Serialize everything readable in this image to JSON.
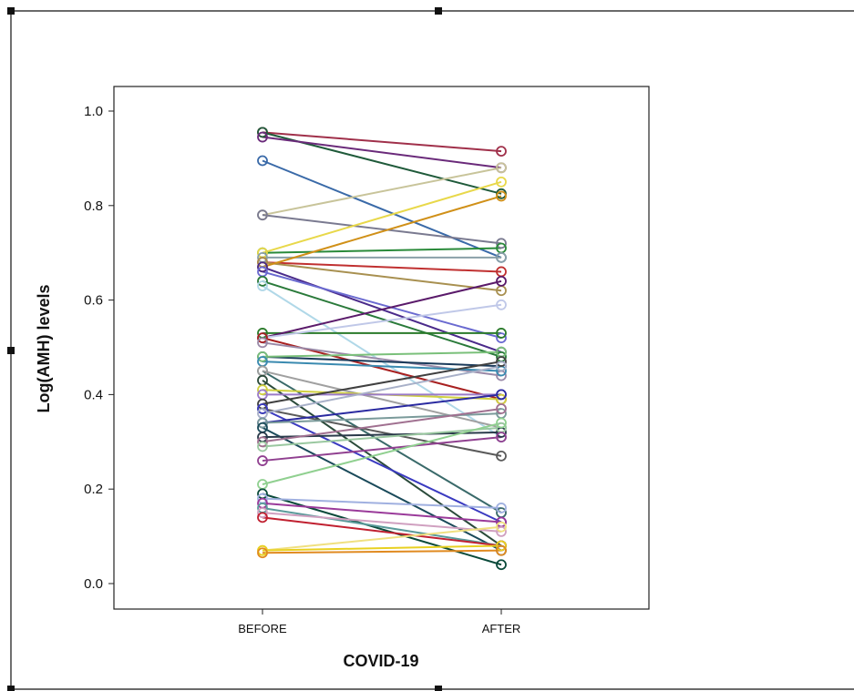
{
  "chart_data": {
    "type": "line",
    "xlabel": "COVID-19",
    "ylabel": "Log(AMH) levels",
    "categories": [
      "BEFORE",
      "AFTER"
    ],
    "ylim": [
      -0.05,
      1.05
    ],
    "yticks": [
      {
        "value": 0.0,
        "label": "0.0"
      },
      {
        "value": 0.2,
        "label": "0.2"
      },
      {
        "value": 0.4,
        "label": "0.4"
      },
      {
        "value": 0.6,
        "label": "0.6"
      },
      {
        "value": 0.8,
        "label": "0.8"
      },
      {
        "value": 1.0,
        "label": "1.0"
      }
    ],
    "grid": false,
    "legend": "none",
    "series": [
      {
        "values": [
          0.955,
          0.915
        ],
        "color": "#a0304a"
      },
      {
        "values": [
          0.955,
          0.825
        ],
        "color": "#1f5a3a"
      },
      {
        "values": [
          0.945,
          0.88
        ],
        "color": "#6a2a7a"
      },
      {
        "values": [
          0.895,
          0.69
        ],
        "color": "#3a6aa8"
      },
      {
        "values": [
          0.78,
          0.88
        ],
        "color": "#c8c49a"
      },
      {
        "values": [
          0.78,
          0.72
        ],
        "color": "#7a7a90"
      },
      {
        "values": [
          0.7,
          0.71
        ],
        "color": "#2a8a3a"
      },
      {
        "values": [
          0.7,
          0.85
        ],
        "color": "#e8d84a"
      },
      {
        "values": [
          0.69,
          0.69
        ],
        "color": "#8aa0a8"
      },
      {
        "values": [
          0.68,
          0.66
        ],
        "color": "#c03030"
      },
      {
        "values": [
          0.68,
          0.62
        ],
        "color": "#a89050"
      },
      {
        "values": [
          0.67,
          0.82
        ],
        "color": "#d09018"
      },
      {
        "values": [
          0.67,
          0.49
        ],
        "color": "#4a2a8a"
      },
      {
        "values": [
          0.66,
          0.52
        ],
        "color": "#6a6ad0"
      },
      {
        "values": [
          0.64,
          0.48
        ],
        "color": "#2a7a3a"
      },
      {
        "values": [
          0.63,
          0.31
        ],
        "color": "#b0d8e8"
      },
      {
        "values": [
          0.53,
          0.53
        ],
        "color": "#2a7a2a"
      },
      {
        "values": [
          0.52,
          0.64
        ],
        "color": "#5a1a6a"
      },
      {
        "values": [
          0.52,
          0.59
        ],
        "color": "#c0c8e8"
      },
      {
        "values": [
          0.52,
          0.39
        ],
        "color": "#a82020"
      },
      {
        "values": [
          0.51,
          0.44
        ],
        "color": "#9a8aa8"
      },
      {
        "values": [
          0.48,
          0.46
        ],
        "color": "#1a3a5a"
      },
      {
        "values": [
          0.48,
          0.49
        ],
        "color": "#7ac07a"
      },
      {
        "values": [
          0.47,
          0.45
        ],
        "color": "#3a8ab0"
      },
      {
        "values": [
          0.45,
          0.15
        ],
        "color": "#3a6a6a"
      },
      {
        "values": [
          0.45,
          0.33
        ],
        "color": "#a0a0a0"
      },
      {
        "values": [
          0.43,
          0.08
        ],
        "color": "#2a4a3a"
      },
      {
        "values": [
          0.41,
          0.39
        ],
        "color": "#d0d040"
      },
      {
        "values": [
          0.4,
          0.4
        ],
        "color": "#9a7ac8"
      },
      {
        "values": [
          0.38,
          0.47
        ],
        "color": "#404040"
      },
      {
        "values": [
          0.37,
          0.27
        ],
        "color": "#5a5a5a"
      },
      {
        "values": [
          0.37,
          0.13
        ],
        "color": "#3a3ac0"
      },
      {
        "values": [
          0.36,
          0.46
        ],
        "color": "#a8b0c8"
      },
      {
        "values": [
          0.34,
          0.4
        ],
        "color": "#2a2aa0"
      },
      {
        "values": [
          0.34,
          0.36
        ],
        "color": "#7a9a9a"
      },
      {
        "values": [
          0.33,
          0.07
        ],
        "color": "#1a4a5a"
      },
      {
        "values": [
          0.31,
          0.32
        ],
        "color": "#2a3a4a"
      },
      {
        "values": [
          0.3,
          0.37
        ],
        "color": "#a07090"
      },
      {
        "values": [
          0.29,
          0.33
        ],
        "color": "#9ac8a0"
      },
      {
        "values": [
          0.26,
          0.31
        ],
        "color": "#904090"
      },
      {
        "values": [
          0.21,
          0.34
        ],
        "color": "#90d090"
      },
      {
        "values": [
          0.19,
          0.04
        ],
        "color": "#0a4a3a"
      },
      {
        "values": [
          0.18,
          0.16
        ],
        "color": "#a0b0e0"
      },
      {
        "values": [
          0.17,
          0.13
        ],
        "color": "#9a3a9a"
      },
      {
        "values": [
          0.16,
          0.08
        ],
        "color": "#5a9a9a"
      },
      {
        "values": [
          0.15,
          0.11
        ],
        "color": "#d0a0c0"
      },
      {
        "values": [
          0.14,
          0.08
        ],
        "color": "#c02030"
      },
      {
        "values": [
          0.07,
          0.12
        ],
        "color": "#f0e080"
      },
      {
        "values": [
          0.07,
          0.08
        ],
        "color": "#e8d020"
      },
      {
        "values": [
          0.065,
          0.07
        ],
        "color": "#e08a20"
      }
    ]
  }
}
